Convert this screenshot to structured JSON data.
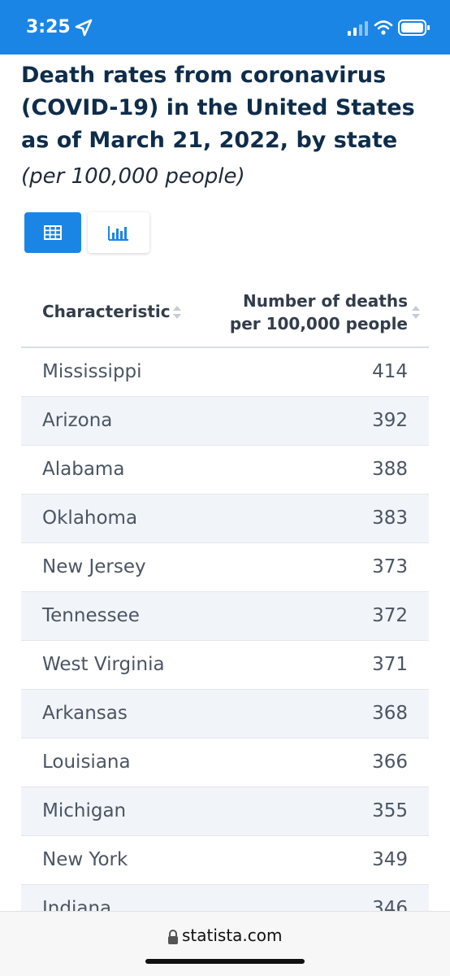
{
  "status_bar": {
    "time": "3:25",
    "icons": [
      "location-arrow-icon",
      "signal-icon",
      "wifi-icon",
      "battery-icon"
    ]
  },
  "chart": {
    "title": "Death rates from coronavirus (COVID-19) in the United States as of March 21, 2022, by state",
    "subtitle": "(per 100,000 people)"
  },
  "view_toggle": {
    "active": "table",
    "options": [
      "table-icon",
      "bar-chart-icon"
    ]
  },
  "table": {
    "columns": [
      "Characteristic",
      "Number of deaths per 100,000 people"
    ],
    "rows": [
      {
        "name": "Mississippi",
        "value": "414"
      },
      {
        "name": "Arizona",
        "value": "392"
      },
      {
        "name": "Alabama",
        "value": "388"
      },
      {
        "name": "Oklahoma",
        "value": "383"
      },
      {
        "name": "New Jersey",
        "value": "373"
      },
      {
        "name": "Tennessee",
        "value": "372"
      },
      {
        "name": "West Virginia",
        "value": "371"
      },
      {
        "name": "Arkansas",
        "value": "368"
      },
      {
        "name": "Louisiana",
        "value": "366"
      },
      {
        "name": "Michigan",
        "value": "355"
      },
      {
        "name": "New York",
        "value": "349"
      },
      {
        "name": "Indiana",
        "value": "346"
      }
    ]
  },
  "browser": {
    "url": "statista.com"
  },
  "colors": {
    "accent": "#1b85e6",
    "title": "#0f2d4a",
    "row_stripe": "#f1f4f9"
  }
}
